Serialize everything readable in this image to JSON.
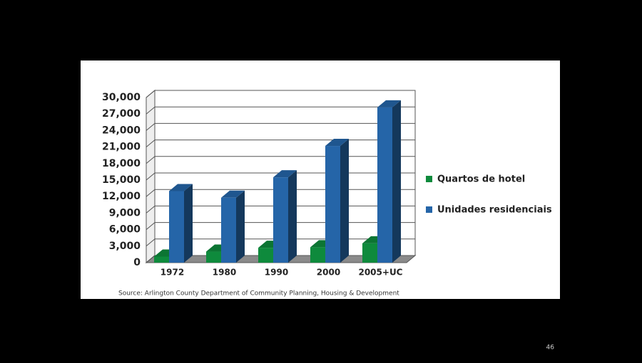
{
  "chart_data": {
    "type": "bar3d",
    "categories": [
      "1972",
      "1980",
      "1990",
      "2000",
      "2005+UC"
    ],
    "series": [
      {
        "name": "Quartos de hotel",
        "color": "#0e8a3c",
        "values": [
          1100,
          2000,
          2700,
          2800,
          3500
        ]
      },
      {
        "name": "Unidades residenciais",
        "color": "#2565a8",
        "values": [
          13000,
          11800,
          15500,
          21200,
          28200
        ]
      }
    ],
    "ylim": [
      0,
      30000
    ],
    "yticks": [
      0,
      {
        "value": 3000,
        "label": "3,000"
      },
      {
        "value": 6000,
        "label": "6,000"
      },
      {
        "value": 9000,
        "label": "9,000"
      },
      {
        "value": 12000,
        "label": "12,000"
      },
      {
        "value": 15000,
        "label": "15,000"
      },
      {
        "value": 18000,
        "label": "18,000"
      },
      {
        "value": 21000,
        "label": "21,000"
      },
      {
        "value": 24000,
        "label": "24,000"
      },
      {
        "value": 27000,
        "label": "27,000"
      },
      {
        "value": 30000,
        "label": "30,000"
      }
    ],
    "grid": true,
    "source": "Source:   Arlington County Department of Community Planning, Housing & Development"
  },
  "slide": {
    "page_number": "46"
  }
}
